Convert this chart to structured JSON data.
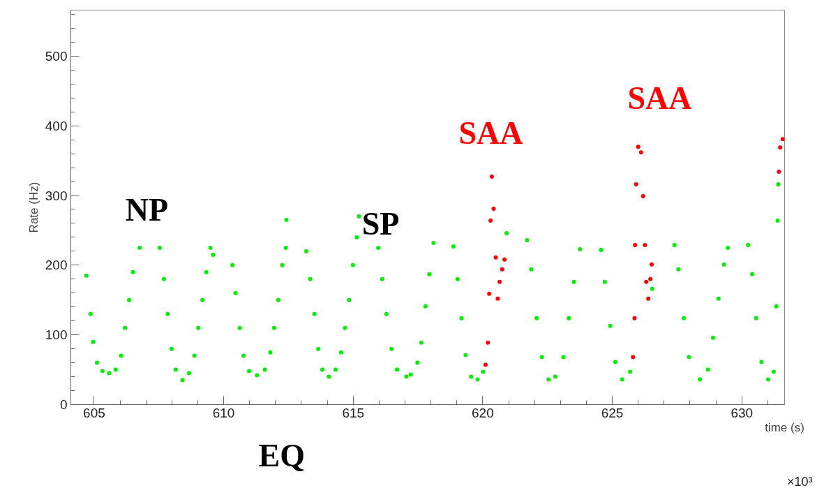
{
  "chart_data": {
    "type": "scatter",
    "xlabel": "time (s)",
    "ylabel": "Rate (Hz)",
    "marker": "circle",
    "grid": false,
    "xlim": [
      604.1,
      631.65
    ],
    "xticks": [
      605,
      610,
      615,
      620,
      625,
      630
    ],
    "ylim": [
      0,
      566
    ],
    "yticks": [
      0,
      100,
      200,
      300,
      400,
      500
    ],
    "annotations": [
      "NP",
      "SP",
      "EQ",
      "SAA",
      "SAA",
      "×10³"
    ],
    "series": [
      {
        "color": "#00ee00",
        "x": [
          604.7,
          604.86,
          604.96,
          605.11,
          605.32,
          605.58,
          605.83,
          606.04,
          606.19,
          606.35,
          606.5,
          606.76,
          607.53,
          607.69,
          607.84,
          607.99,
          608.15,
          608.41,
          608.66,
          608.87,
          609.02,
          609.18,
          609.33,
          609.49,
          609.59,
          610.34,
          610.46,
          610.62,
          610.77,
          610.98,
          611.29,
          611.59,
          611.8,
          611.95,
          612.11,
          612.26,
          612.4,
          612.42,
          613.19,
          613.34,
          613.5,
          613.65,
          613.81,
          614.06,
          614.32,
          614.53,
          614.68,
          614.84,
          614.99,
          615.14,
          615.22,
          615.97,
          616.12,
          616.28,
          616.48,
          616.69,
          617.05,
          617.22,
          617.48,
          617.63,
          617.79,
          617.94,
          618.1,
          618.87,
          619.03,
          619.18,
          619.34,
          619.55,
          619.8,
          620.01,
          620.92,
          621.71,
          621.87,
          622.08,
          622.28,
          622.54,
          622.8,
          623.11,
          623.32,
          623.52,
          623.75,
          624.56,
          624.71,
          624.92,
          625.12,
          625.38,
          625.69,
          626.54,
          627.4,
          627.55,
          627.76,
          627.96,
          628.38,
          628.69,
          628.89,
          629.1,
          629.31,
          629.46,
          630.24,
          630.4,
          630.55,
          630.76,
          631.02,
          631.23,
          631.33,
          631.38,
          631.41
        ],
        "values": [
          185,
          130,
          90,
          60,
          48,
          45,
          50,
          70,
          110,
          150,
          190,
          225,
          225,
          180,
          130,
          80,
          50,
          35,
          45,
          70,
          110,
          150,
          190,
          225,
          215,
          200,
          160,
          110,
          70,
          48,
          42,
          50,
          75,
          110,
          150,
          200,
          225,
          265,
          220,
          180,
          130,
          80,
          50,
          40,
          50,
          75,
          110,
          150,
          200,
          240,
          270,
          225,
          180,
          130,
          80,
          50,
          40,
          43,
          60,
          89,
          141,
          187,
          232,
          227,
          180,
          124,
          71,
          40,
          36,
          47,
          246,
          236,
          194,
          124,
          68,
          36,
          40,
          68,
          124,
          176,
          223,
          222,
          176,
          113,
          61,
          36,
          47,
          166,
          229,
          194,
          124,
          68,
          36,
          50,
          96,
          152,
          201,
          225,
          229,
          187,
          124,
          61,
          36,
          47,
          141,
          264,
          316
        ]
      },
      {
        "color": "#ff0000",
        "x": [
          620.11,
          620.2,
          620.25,
          620.3,
          620.35,
          620.42,
          620.5,
          620.58,
          620.65,
          620.75,
          620.84,
          625.8,
          625.86,
          625.88,
          625.92,
          626.0,
          626.11,
          626.19,
          626.26,
          626.31,
          626.39,
          626.47,
          626.52,
          631.43,
          631.48,
          631.58
        ],
        "values": [
          57,
          89,
          159,
          264,
          327,
          281,
          211,
          152,
          176,
          194,
          208,
          68,
          124,
          229,
          316,
          370,
          362,
          299,
          229,
          176,
          152,
          180,
          201,
          334,
          369,
          381
        ]
      }
    ]
  }
}
